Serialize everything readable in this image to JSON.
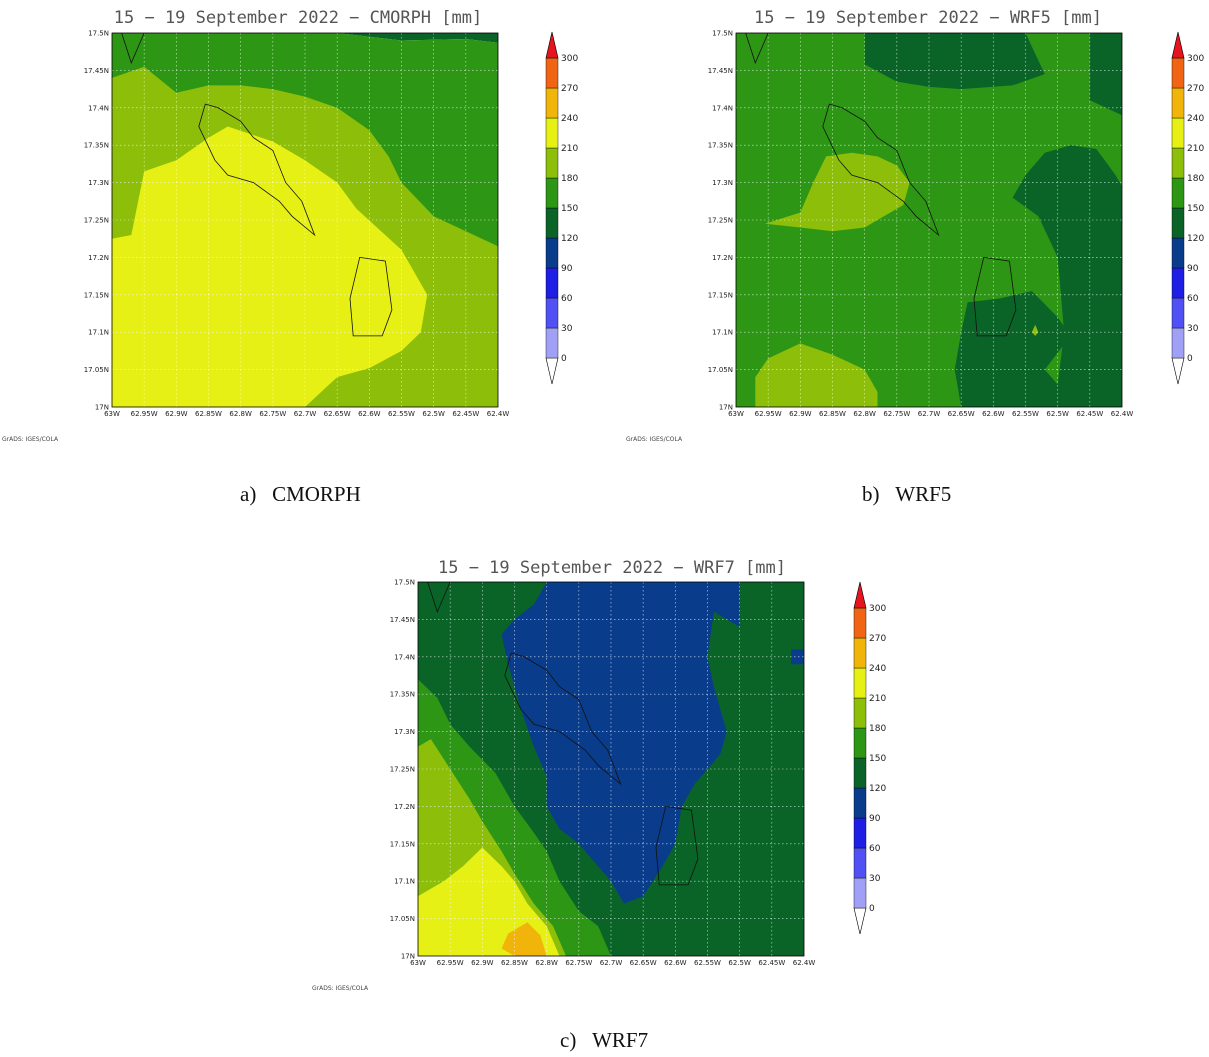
{
  "panels": [
    {
      "id": "a",
      "title": "15 − 19 September 2022 − CMORPH [mm]",
      "caption_letter": "a)",
      "caption_name": "CMORPH",
      "credit": "GrADS: IGES/COLA"
    },
    {
      "id": "b",
      "title": "15 − 19 September 2022 − WRF5 [mm]",
      "caption_letter": "b)",
      "caption_name": "WRF5",
      "credit": "GrADS: IGES/COLA"
    },
    {
      "id": "c",
      "title": "15 − 19 September 2022 − WRF7 [mm]",
      "caption_letter": "c)",
      "caption_name": "WRF7",
      "credit": "GrADS: IGES/COLA"
    }
  ],
  "chart_data": [
    {
      "type": "heatmap",
      "title": "15 − 19 September 2022 − CMORPH [mm]",
      "x_ticks": [
        "63W",
        "62.95W",
        "62.9W",
        "62.85W",
        "62.8W",
        "62.75W",
        "62.7W",
        "62.65W",
        "62.6W",
        "62.55W",
        "62.5W",
        "62.45W",
        "62.4W"
      ],
      "y_ticks": [
        "17N",
        "17.05N",
        "17.1N",
        "17.15N",
        "17.2N",
        "17.25N",
        "17.3N",
        "17.35N",
        "17.4N",
        "17.45N",
        "17.5N"
      ],
      "xlim": [
        -63.0,
        -62.4
      ],
      "ylim": [
        17.0,
        17.5
      ],
      "grid": true,
      "contour_levels": [
        0,
        30,
        60,
        90,
        120,
        150,
        180,
        210,
        240,
        270,
        300
      ],
      "level_colors": [
        "#a0a0f7",
        "#5050f5",
        "#1e1ee4",
        "#0a3c8c",
        "#0a6428",
        "#2d9614",
        "#8cbe0a",
        "#e6f014",
        "#f0b40a",
        "#f06414",
        "#e6141e"
      ],
      "filled_regions": [
        {
          "bin": "90-120",
          "points": [
            [
              -62.875,
              17.5
            ],
            [
              -62.4,
              17.5
            ],
            [
              -62.4,
              17.487
            ],
            [
              -62.45,
              17.492
            ],
            [
              -62.55,
              17.49
            ],
            [
              -62.65,
              17.5
            ]
          ]
        },
        {
          "bin": "120-150",
          "points": [
            [
              -63.0,
              17.5
            ],
            [
              -62.875,
              17.5
            ],
            [
              -62.65,
              17.5
            ],
            [
              -62.55,
              17.49
            ],
            [
              -62.45,
              17.492
            ],
            [
              -62.4,
              17.487
            ],
            [
              -62.4,
              17.0
            ],
            [
              -63.0,
              17.0
            ]
          ]
        },
        {
          "bin": "150-180",
          "points": [
            [
              -63.0,
              17.44
            ],
            [
              -62.95,
              17.455
            ],
            [
              -62.9,
              17.42
            ],
            [
              -62.85,
              17.43
            ],
            [
              -62.8,
              17.43
            ],
            [
              -62.75,
              17.425
            ],
            [
              -62.7,
              17.415
            ],
            [
              -62.65,
              17.4
            ],
            [
              -62.6,
              17.37
            ],
            [
              -62.57,
              17.335
            ],
            [
              -62.55,
              17.3
            ],
            [
              -62.5,
              17.255
            ],
            [
              -62.4,
              17.215
            ],
            [
              -62.4,
              17.0
            ],
            [
              -63.0,
              17.0
            ]
          ]
        },
        {
          "bin": "180-210",
          "points": [
            [
              -63.0,
              17.225
            ],
            [
              -62.97,
              17.23
            ],
            [
              -62.95,
              17.315
            ],
            [
              -62.9,
              17.33
            ],
            [
              -62.85,
              17.36
            ],
            [
              -62.82,
              17.375
            ],
            [
              -62.75,
              17.355
            ],
            [
              -62.7,
              17.33
            ],
            [
              -62.65,
              17.3
            ],
            [
              -62.62,
              17.265
            ],
            [
              -62.55,
              17.21
            ],
            [
              -62.51,
              17.15
            ],
            [
              -62.52,
              17.1
            ],
            [
              -62.55,
              17.075
            ],
            [
              -62.6,
              17.052
            ],
            [
              -62.65,
              17.04
            ],
            [
              -62.7,
              17.0
            ],
            [
              -63.0,
              17.0
            ]
          ]
        }
      ]
    },
    {
      "type": "heatmap",
      "title": "15 − 19 September 2022 − WRF5 [mm]",
      "x_ticks": [
        "63W",
        "62.95W",
        "62.9W",
        "62.85W",
        "62.8W",
        "62.75W",
        "62.7W",
        "62.65W",
        "62.6W",
        "62.55W",
        "62.5W",
        "62.45W",
        "62.4W"
      ],
      "y_ticks": [
        "17N",
        "17.05N",
        "17.1N",
        "17.15N",
        "17.2N",
        "17.25N",
        "17.3N",
        "17.35N",
        "17.4N",
        "17.45N",
        "17.5N"
      ],
      "xlim": [
        -63.0,
        -62.4
      ],
      "ylim": [
        17.0,
        17.5
      ],
      "grid": true,
      "contour_levels": [
        0,
        30,
        60,
        90,
        120,
        150,
        180,
        210,
        240,
        270,
        300
      ],
      "level_colors": [
        "#a0a0f7",
        "#5050f5",
        "#1e1ee4",
        "#0a3c8c",
        "#0a6428",
        "#2d9614",
        "#8cbe0a",
        "#e6f014",
        "#f0b40a",
        "#f06414",
        "#e6141e"
      ],
      "filled_regions": [
        {
          "bin": "120-150",
          "points": [
            [
              -63.0,
              17.5
            ],
            [
              -62.4,
              17.5
            ],
            [
              -62.4,
              17.0
            ],
            [
              -63.0,
              17.0
            ]
          ]
        },
        {
          "bin": "90-120",
          "points": [
            [
              -62.8,
              17.5
            ],
            [
              -62.55,
              17.5
            ],
            [
              -62.52,
              17.445
            ],
            [
              -62.57,
              17.43
            ],
            [
              -62.65,
              17.425
            ],
            [
              -62.7,
              17.428
            ],
            [
              -62.75,
              17.435
            ],
            [
              -62.8,
              17.458
            ]
          ]
        },
        {
          "bin": "90-120",
          "points": [
            [
              -62.45,
              17.5
            ],
            [
              -62.4,
              17.5
            ],
            [
              -62.4,
              17.39
            ],
            [
              -62.45,
              17.41
            ]
          ]
        },
        {
          "bin": "90-120",
          "points": [
            [
              -62.55,
              17.31
            ],
            [
              -62.52,
              17.34
            ],
            [
              -62.48,
              17.35
            ],
            [
              -62.44,
              17.345
            ],
            [
              -62.41,
              17.31
            ],
            [
              -62.4,
              17.295
            ],
            [
              -62.4,
              17.0
            ],
            [
              -62.65,
              17.0
            ],
            [
              -62.66,
              17.05
            ],
            [
              -62.65,
              17.1
            ],
            [
              -62.64,
              17.14
            ],
            [
              -62.59,
              17.145
            ],
            [
              -62.54,
              17.155
            ],
            [
              -62.5,
              17.12
            ],
            [
              -62.48,
              17.095
            ],
            [
              -62.52,
              17.05
            ],
            [
              -62.5,
              17.03
            ],
            [
              -62.49,
              17.1
            ],
            [
              -62.5,
              17.2
            ],
            [
              -62.53,
              17.255
            ],
            [
              -62.57,
              17.28
            ]
          ]
        },
        {
          "bin": "150-180",
          "points": [
            [
              -62.955,
              17.245
            ],
            [
              -62.9,
              17.24
            ],
            [
              -62.85,
              17.235
            ],
            [
              -62.8,
              17.24
            ],
            [
              -62.78,
              17.25
            ],
            [
              -62.74,
              17.27
            ],
            [
              -62.73,
              17.3
            ],
            [
              -62.75,
              17.323
            ],
            [
              -62.78,
              17.335
            ],
            [
              -62.82,
              17.34
            ],
            [
              -62.86,
              17.335
            ],
            [
              -62.88,
              17.3
            ],
            [
              -62.9,
              17.26
            ]
          ]
        },
        {
          "bin": "150-180",
          "points": [
            [
              -62.97,
              17.04
            ],
            [
              -62.95,
              17.065
            ],
            [
              -62.9,
              17.085
            ],
            [
              -62.85,
              17.07
            ],
            [
              -62.8,
              17.05
            ],
            [
              -62.78,
              17.02
            ],
            [
              -62.78,
              17.0
            ],
            [
              -62.97,
              17.0
            ]
          ]
        },
        {
          "bin": "150-180",
          "points": [
            [
              -62.535,
              17.11
            ],
            [
              -62.53,
              17.1
            ],
            [
              -62.535,
              17.095
            ],
            [
              -62.54,
              17.1
            ]
          ]
        }
      ]
    },
    {
      "type": "heatmap",
      "title": "15 − 19 September 2022 − WRF7 [mm]",
      "x_ticks": [
        "63W",
        "62.95W",
        "62.9W",
        "62.85W",
        "62.8W",
        "62.75W",
        "62.7W",
        "62.65W",
        "62.6W",
        "62.55W",
        "62.5W",
        "62.45W",
        "62.4W"
      ],
      "y_ticks": [
        "17N",
        "17.05N",
        "17.1N",
        "17.15N",
        "17.2N",
        "17.25N",
        "17.3N",
        "17.35N",
        "17.4N",
        "17.45N",
        "17.5N"
      ],
      "xlim": [
        -63.0,
        -62.4
      ],
      "ylim": [
        17.0,
        17.5
      ],
      "grid": true,
      "contour_levels": [
        0,
        30,
        60,
        90,
        120,
        150,
        180,
        210,
        240,
        270,
        300
      ],
      "level_colors": [
        "#a0a0f7",
        "#5050f5",
        "#1e1ee4",
        "#0a3c8c",
        "#0a6428",
        "#2d9614",
        "#8cbe0a",
        "#e6f014",
        "#f0b40a",
        "#f06414",
        "#e6141e"
      ],
      "filled_regions": [
        {
          "bin": "90-120",
          "points": [
            [
              -63.0,
              17.5
            ],
            [
              -62.4,
              17.5
            ],
            [
              -62.4,
              17.0
            ],
            [
              -63.0,
              17.0
            ]
          ]
        },
        {
          "bin": "60-90",
          "points": [
            [
              -62.8,
              17.5
            ],
            [
              -62.5,
              17.5
            ],
            [
              -62.5,
              17.44
            ],
            [
              -62.54,
              17.46
            ],
            [
              -62.55,
              17.4
            ],
            [
              -62.54,
              17.36
            ],
            [
              -62.52,
              17.3
            ],
            [
              -62.53,
              17.27
            ],
            [
              -62.57,
              17.23
            ],
            [
              -62.59,
              17.2
            ],
            [
              -62.6,
              17.15
            ],
            [
              -62.62,
              17.12
            ],
            [
              -62.65,
              17.08
            ],
            [
              -62.68,
              17.07
            ],
            [
              -62.7,
              17.1
            ],
            [
              -62.72,
              17.12
            ],
            [
              -62.75,
              17.15
            ],
            [
              -62.78,
              17.17
            ],
            [
              -62.8,
              17.2
            ],
            [
              -62.8,
              17.24
            ],
            [
              -62.82,
              17.28
            ],
            [
              -62.84,
              17.33
            ],
            [
              -62.86,
              17.39
            ],
            [
              -62.87,
              17.43
            ],
            [
              -62.85,
              17.45
            ],
            [
              -62.82,
              17.47
            ]
          ]
        },
        {
          "bin": "60-90",
          "points": [
            [
              -62.4,
              17.39
            ],
            [
              -62.42,
              17.39
            ],
            [
              -62.42,
              17.41
            ],
            [
              -62.4,
              17.41
            ]
          ]
        },
        {
          "bin": "120-150",
          "points": [
            [
              -63.0,
              17.37
            ],
            [
              -62.97,
              17.345
            ],
            [
              -62.95,
              17.31
            ],
            [
              -62.92,
              17.28
            ],
            [
              -62.88,
              17.245
            ],
            [
              -62.85,
              17.2
            ],
            [
              -62.82,
              17.165
            ],
            [
              -62.8,
              17.14
            ],
            [
              -62.78,
              17.1
            ],
            [
              -62.75,
              17.06
            ],
            [
              -62.72,
              17.04
            ],
            [
              -62.7,
              17.0
            ],
            [
              -63.0,
              17.0
            ]
          ]
        },
        {
          "bin": "150-180",
          "points": [
            [
              -63.0,
              17.28
            ],
            [
              -62.98,
              17.29
            ],
            [
              -62.95,
              17.25
            ],
            [
              -62.92,
              17.21
            ],
            [
              -62.9,
              17.18
            ],
            [
              -62.87,
              17.14
            ],
            [
              -62.85,
              17.11
            ],
            [
              -62.82,
              17.07
            ],
            [
              -62.79,
              17.04
            ],
            [
              -62.77,
              17.0
            ],
            [
              -63.0,
              17.0
            ]
          ]
        },
        {
          "bin": "180-210",
          "points": [
            [
              -63.0,
              17.08
            ],
            [
              -62.96,
              17.1
            ],
            [
              -62.93,
              17.12
            ],
            [
              -62.9,
              17.145
            ],
            [
              -62.87,
              17.12
            ],
            [
              -62.85,
              17.1
            ],
            [
              -62.83,
              17.07
            ],
            [
              -62.8,
              17.04
            ],
            [
              -62.78,
              17.0
            ],
            [
              -63.0,
              17.0
            ]
          ]
        },
        {
          "bin": "210-240",
          "points": [
            [
              -62.85,
              17.0
            ],
            [
              -62.8,
              17.0
            ],
            [
              -62.81,
              17.028
            ],
            [
              -62.83,
              17.045
            ],
            [
              -62.86,
              17.03
            ],
            [
              -62.87,
              17.01
            ]
          ]
        }
      ]
    }
  ],
  "island_outline": [
    [
      -62.855,
      17.405
    ],
    [
      -62.835,
      17.4
    ],
    [
      -62.8,
      17.382
    ],
    [
      -62.78,
      17.36
    ],
    [
      -62.75,
      17.343
    ],
    [
      -62.73,
      17.3
    ],
    [
      -62.705,
      17.275
    ],
    [
      -62.685,
      17.23
    ],
    [
      -62.72,
      17.255
    ],
    [
      -62.74,
      17.275
    ],
    [
      -62.78,
      17.3
    ],
    [
      -62.82,
      17.31
    ],
    [
      -62.84,
      17.33
    ],
    [
      -62.865,
      17.375
    ]
  ],
  "island2_outline": [
    [
      -62.615,
      17.2
    ],
    [
      -62.575,
      17.195
    ],
    [
      -62.565,
      17.13
    ],
    [
      -62.58,
      17.095
    ],
    [
      -62.625,
      17.095
    ],
    [
      -62.63,
      17.145
    ]
  ],
  "colorbar": {
    "labels": [
      "0",
      "30",
      "60",
      "90",
      "120",
      "150",
      "180",
      "210",
      "240",
      "270",
      "300"
    ],
    "colors": [
      "#a0a0f7",
      "#5050f5",
      "#1e1ee4",
      "#0a3c8c",
      "#0a6428",
      "#2d9614",
      "#8cbe0a",
      "#e6f014",
      "#f0b40a",
      "#f06414",
      "#e6141e"
    ]
  }
}
